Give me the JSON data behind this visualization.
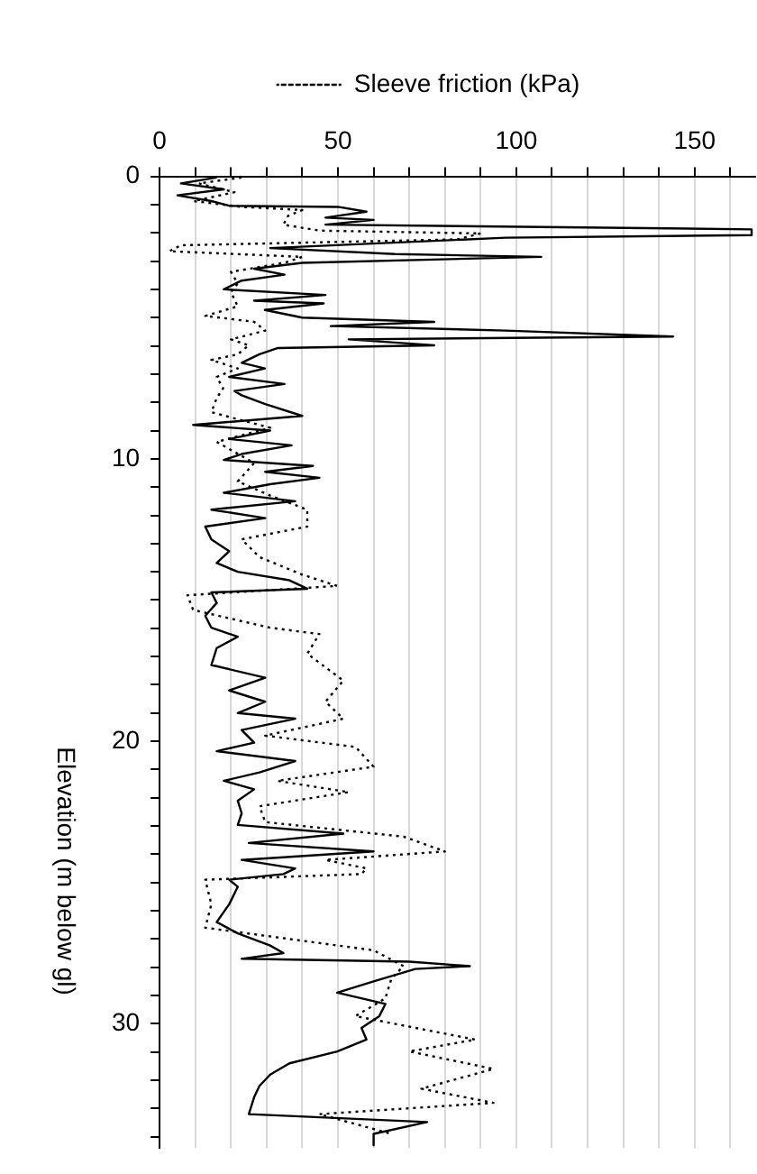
{
  "chart_data": {
    "type": "line",
    "ylabel": "Elevation (m below gl)",
    "legend": "top",
    "grid": "x",
    "xlim": [
      0,
      167
    ],
    "xticks": [
      0,
      {
        "value": 10,
        "label": null
      },
      {
        "value": 20,
        "label": null
      },
      {
        "value": 30,
        "label": null
      },
      {
        "value": 40,
        "label": null
      },
      50,
      {
        "value": 60,
        "label": null
      },
      {
        "value": 70,
        "label": null
      },
      {
        "value": 80,
        "label": null
      },
      {
        "value": 90,
        "label": null
      },
      100,
      {
        "value": 110,
        "label": null
      },
      {
        "value": 120,
        "label": null
      },
      {
        "value": 130,
        "label": null
      },
      {
        "value": 140,
        "label": null
      },
      150,
      {
        "value": 160,
        "label": null
      }
    ],
    "ylim": [
      34.4,
      0
    ],
    "yticks": [
      0,
      {
        "value": 1,
        "label": null
      },
      {
        "value": 2,
        "label": null
      },
      {
        "value": 3,
        "label": null
      },
      {
        "value": 4,
        "label": null
      },
      {
        "value": 5,
        "label": null
      },
      {
        "value": 6,
        "label": null
      },
      {
        "value": 7,
        "label": null
      },
      {
        "value": 8,
        "label": null
      },
      {
        "value": 9,
        "label": null
      },
      10,
      {
        "value": 11,
        "label": null
      },
      {
        "value": 12,
        "label": null
      },
      {
        "value": 13,
        "label": null
      },
      {
        "value": 14,
        "label": null
      },
      {
        "value": 15,
        "label": null
      },
      {
        "value": 16,
        "label": null
      },
      {
        "value": 17,
        "label": null
      },
      {
        "value": 18,
        "label": null
      },
      {
        "value": 19,
        "label": null
      },
      20,
      {
        "value": 21,
        "label": null
      },
      {
        "value": 22,
        "label": null
      },
      {
        "value": 23,
        "label": null
      },
      {
        "value": 24,
        "label": null
      },
      {
        "value": 25,
        "label": null
      },
      {
        "value": 26,
        "label": null
      },
      {
        "value": 27,
        "label": null
      },
      {
        "value": 28,
        "label": null
      },
      {
        "value": 29,
        "label": null
      },
      30,
      {
        "value": 31,
        "label": null
      },
      {
        "value": 32,
        "label": null
      },
      {
        "value": 33,
        "label": null
      },
      {
        "value": 34,
        "label": null
      }
    ],
    "series": [
      {
        "color": "#000000",
        "line_style": "solid",
        "x": [
          16,
          6,
          18,
          5,
          14.5,
          19.5,
          50,
          58,
          46.5,
          60,
          46.5,
          166,
          166,
          97,
          31,
          66,
          107,
          40,
          26.5,
          35,
          23,
          18,
          46.5,
          26.5,
          46,
          29.5,
          40,
          77,
          48,
          97,
          144,
          53,
          77,
          33,
          28,
          23,
          29.5,
          19.5,
          35,
          21,
          23,
          29.6,
          40,
          9.4,
          31,
          19.5,
          37,
          23,
          18,
          43,
          29.6,
          44.8,
          31,
          18,
          38,
          14.5,
          29.6,
          12.8,
          14.5,
          19.5,
          16,
          21.9,
          36.4,
          41.4,
          14.5,
          16,
          12.8,
          14.5,
          21.9,
          16,
          14.5,
          29.6,
          19.5,
          29.6,
          21.9,
          38,
          23,
          26.5,
          16,
          38,
          28,
          18,
          26.5,
          21.9,
          23,
          21.9,
          51.5,
          25,
          60,
          23,
          38,
          34.7,
          19.5,
          21.9,
          19.5,
          16,
          21.9,
          31,
          34.7,
          23,
          70,
          87,
          71.7,
          60,
          49.8,
          63.3,
          61.6,
          56.6,
          58,
          49.8,
          36.4,
          31,
          28,
          26.5,
          25,
          75,
          60,
          60
        ],
        "values": [
          0.04,
          0.25,
          0.46,
          0.67,
          0.875,
          1.04,
          1.08,
          1.25,
          1.46,
          1.54,
          1.71,
          1.875,
          2.08,
          2.17,
          2.54,
          2.75,
          2.85,
          3.06,
          3.27,
          3.48,
          3.69,
          4.0,
          4.2,
          4.4,
          4.5,
          4.73,
          5.0,
          5.15,
          5.3,
          5.46,
          5.67,
          5.77,
          5.98,
          6.08,
          6.3,
          6.6,
          6.8,
          7.1,
          7.35,
          7.6,
          7.75,
          8.06,
          8.48,
          8.8,
          9.0,
          9.3,
          9.52,
          9.83,
          10.04,
          10.25,
          10.46,
          10.67,
          10.9,
          11.2,
          11.5,
          11.8,
          12.1,
          12.4,
          12.85,
          13.27,
          13.69,
          14.0,
          14.3,
          14.6,
          14.73,
          15.1,
          15.56,
          15.98,
          16.3,
          16.7,
          17.3,
          17.75,
          18.2,
          18.6,
          19.0,
          19.2,
          19.6,
          20.05,
          20.35,
          20.7,
          21.1,
          21.4,
          21.7,
          22.1,
          22.55,
          22.96,
          23.27,
          23.6,
          23.9,
          24.2,
          24.5,
          24.7,
          24.9,
          25.15,
          25.77,
          26.4,
          26.8,
          27.23,
          27.5,
          27.7,
          27.8,
          27.96,
          28.06,
          28.5,
          28.9,
          29.3,
          29.73,
          30.15,
          30.56,
          30.98,
          31.4,
          31.8,
          32.2,
          32.6,
          33.2,
          33.48,
          33.9,
          34.3
        ]
      },
      {
        "name": "Sleeve friction (kPa)",
        "color": "#000000",
        "line_style": "dotted",
        "x": [
          23,
          11,
          21,
          9.5,
          23,
          40,
          36,
          34.7,
          44.8,
          90,
          83.5,
          6,
          2.7,
          40,
          35,
          20,
          21.9,
          20,
          21.9,
          12.8,
          26.5,
          29.6,
          20,
          25,
          21.9,
          14.5,
          21.9,
          16,
          17.8,
          16,
          14.5,
          31,
          16,
          26.5,
          21.9,
          31,
          41.4,
          41.4,
          23,
          28,
          40,
          49.8,
          7.8,
          9.4,
          31,
          44.8,
          41.4,
          51.5,
          46.5,
          51.5,
          29.6,
          54.9,
          60,
          33,
          53,
          28,
          29.6,
          68.4,
          80,
          46.5,
          58,
          56.6,
          12.8,
          14.5,
          12.8,
          60,
          68.4,
          65,
          63.3,
          54.9,
          88.5,
          70,
          93.6,
          73.4,
          93.6,
          44.8,
          65
        ],
        "values": [
          0.04,
          0.25,
          0.56,
          0.875,
          1.08,
          1.19,
          1.4,
          1.71,
          1.92,
          2.02,
          2.23,
          2.44,
          2.65,
          2.85,
          3.06,
          3.38,
          3.79,
          4.1,
          4.6,
          4.94,
          5.15,
          5.46,
          5.77,
          5.98,
          6.3,
          6.5,
          6.8,
          7.1,
          7.5,
          7.85,
          8.35,
          8.9,
          9.4,
          10.15,
          10.8,
          11.3,
          11.8,
          12.4,
          12.85,
          13.48,
          14.1,
          14.5,
          14.83,
          15.35,
          15.98,
          16.2,
          16.9,
          17.85,
          18.6,
          19.2,
          19.8,
          20.2,
          20.9,
          21.4,
          21.8,
          22.3,
          22.86,
          23.375,
          23.9,
          24.2,
          24.5,
          24.7,
          24.9,
          25.77,
          26.6,
          27.4,
          27.96,
          28.4,
          29.1,
          29.73,
          30.56,
          30.98,
          31.6,
          32.3,
          32.8,
          33.2,
          33.9
        ]
      }
    ]
  }
}
